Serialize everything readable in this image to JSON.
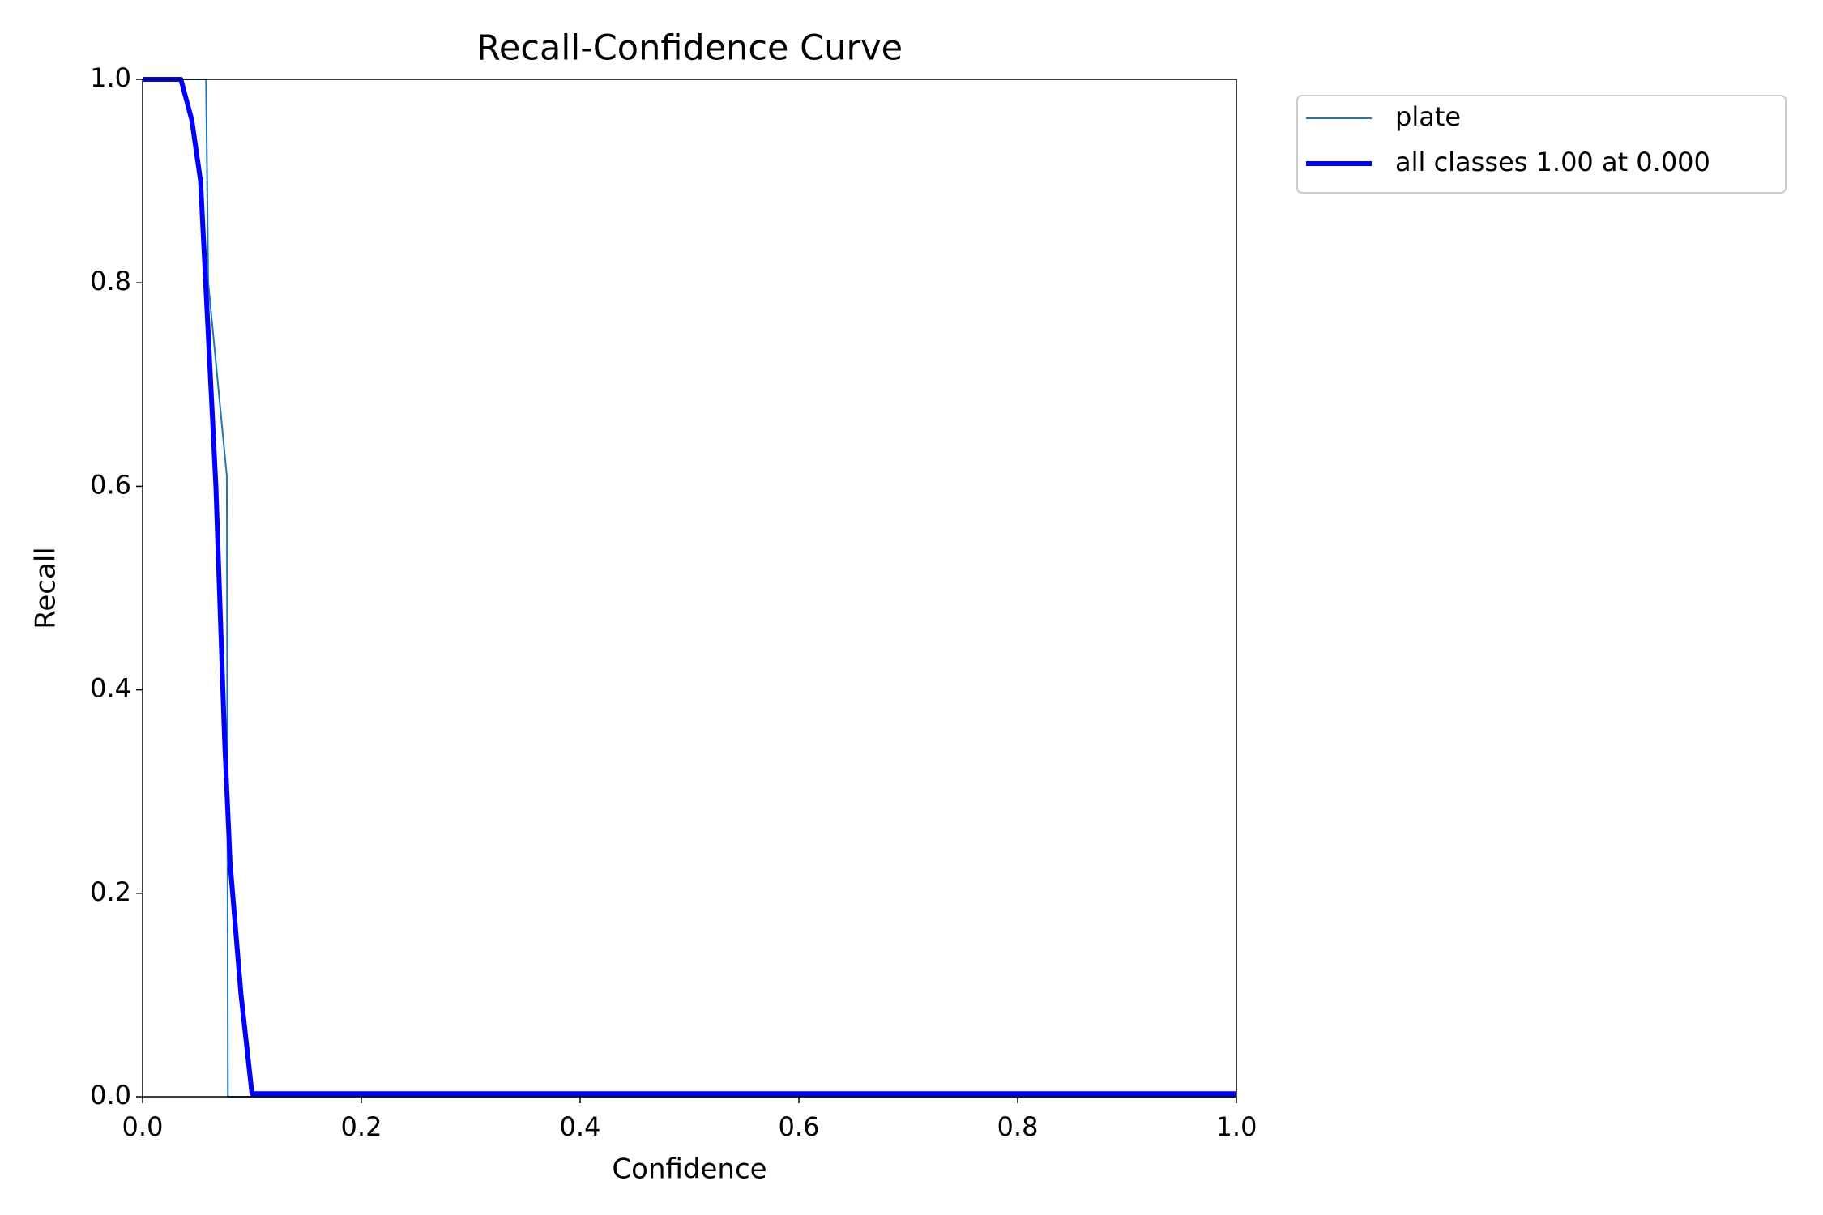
{
  "chart_data": {
    "type": "line",
    "title": "Recall-Confidence Curve",
    "xlabel": "Confidence",
    "ylabel": "Recall",
    "xlim": [
      0,
      1
    ],
    "ylim": [
      0,
      1
    ],
    "xticks": [
      {
        "value": 0,
        "label": "0.0"
      },
      0.2,
      0.4,
      0.6,
      0.8,
      {
        "value": 1,
        "label": "1.0"
      }
    ],
    "yticks": [
      {
        "value": 0,
        "label": "0.0"
      },
      0.2,
      0.4,
      0.6,
      0.8,
      {
        "value": 1,
        "label": "1.0"
      }
    ],
    "series": [
      {
        "name": "plate",
        "color": "#1f77b4",
        "linewidth": 2,
        "x": [
          0,
          0.058,
          0.06,
          0.077,
          0.078,
          1
        ],
        "values": [
          1,
          1,
          0.8,
          0.61,
          0,
          0
        ]
      },
      {
        "name": "all classes 1.00 at 0.000",
        "color": "#0000ff",
        "linewidth": 6,
        "x": [
          0,
          0.035,
          0.045,
          0.053,
          0.067,
          0.075,
          0.08,
          0.09,
          0.1,
          1
        ],
        "values": [
          1,
          1,
          0.96,
          0.9,
          0.6,
          0.35,
          0.23,
          0.1,
          0.003,
          0.003
        ]
      }
    ]
  }
}
